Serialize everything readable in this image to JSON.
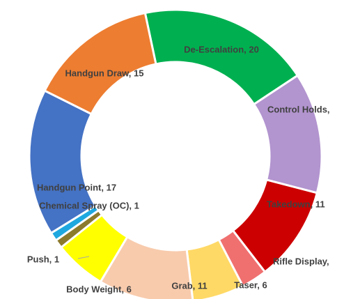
{
  "chart_data": {
    "type": "donut",
    "categories": [
      "De-Escalation",
      "Control Holds",
      "Takedown",
      "Rifle Display",
      "Taser",
      "Grab",
      "Body Weight",
      "Push",
      "Chemical Spray (OC)",
      "Handgun Point",
      "Handgun Draw"
    ],
    "values": [
      20,
      14,
      11,
      3,
      6,
      11,
      6,
      1,
      1,
      17,
      15
    ],
    "value_labels": [
      "De-Escalation, 20",
      "Control Holds,",
      "Takedown, 11",
      "Rifle Display,",
      "Taser, 6",
      "Grab, 11",
      "Body Weight, 6",
      "Push, 1",
      "Chemical Spray (OC), 1",
      "Handgun Point, 17",
      "Handgun Draw, 15"
    ],
    "colors": [
      "#00b050",
      "#b294cf",
      "#cc0000",
      "#f07070",
      "#ffd966",
      "#f8cbad",
      "#ffff00",
      "#8c7a2c",
      "#1fa8e0",
      "#4472c4",
      "#ed7d31"
    ]
  }
}
